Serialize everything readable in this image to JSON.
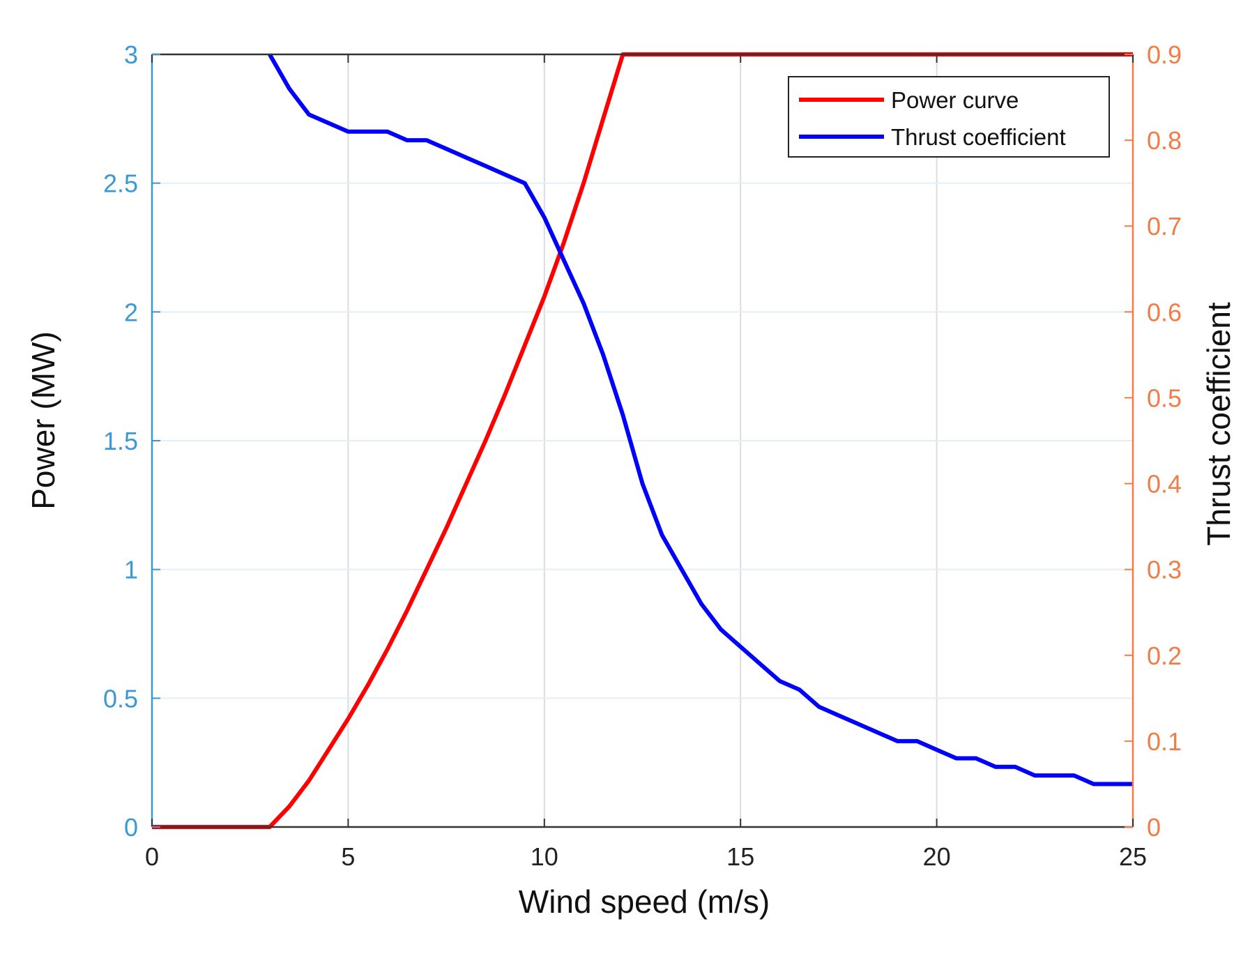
{
  "chart_data": {
    "type": "line",
    "xlabel": "Wind speed (m/s)",
    "ylabel_left": "Power (MW)",
    "ylabel_right": "Thrust coefficient",
    "xlim": [
      0,
      25
    ],
    "ylim_left": [
      0,
      3
    ],
    "ylim_right": [
      0,
      0.9
    ],
    "x_ticks": [
      "0",
      "5",
      "10",
      "15",
      "20",
      "25"
    ],
    "y_left_ticks": [
      "0",
      "0.5",
      "1",
      "1.5",
      "2",
      "2.5",
      "3"
    ],
    "y_right_ticks": [
      "0",
      "0.1",
      "0.2",
      "0.3",
      "0.4",
      "0.5",
      "0.6",
      "0.7",
      "0.8",
      "0.9"
    ],
    "grid": true,
    "legend_position": "top-right",
    "colors": {
      "power": "#ff0000",
      "thrust": "#0000ff",
      "left_axis": "#3b98d6",
      "right_axis": "#f27c45",
      "grid": "#e3eef7"
    },
    "series": [
      {
        "name": "Power curve",
        "axis": "left",
        "color": "#ff0000",
        "x": [
          0,
          3,
          3.5,
          4,
          4.5,
          5,
          5.5,
          6,
          6.5,
          7,
          7.5,
          8,
          8.5,
          9,
          9.5,
          10,
          10.5,
          11,
          11.5,
          12,
          25
        ],
        "y": [
          0,
          0,
          0.08,
          0.18,
          0.3,
          0.42,
          0.55,
          0.69,
          0.84,
          1.0,
          1.16,
          1.33,
          1.5,
          1.68,
          1.87,
          2.06,
          2.27,
          2.5,
          2.75,
          3.0,
          3.0
        ]
      },
      {
        "name": "Thrust coefficient",
        "axis": "right",
        "color": "#0000ff",
        "x": [
          3,
          3.5,
          4,
          4.5,
          5,
          5.5,
          6,
          6.5,
          7,
          7.5,
          8,
          8.5,
          9,
          9.5,
          10,
          10.5,
          11,
          11.5,
          12,
          12.5,
          13,
          13.5,
          14,
          14.5,
          15,
          15.5,
          16,
          16.5,
          17,
          17.5,
          18,
          18.5,
          19,
          19.5,
          20,
          20.5,
          21,
          21.5,
          22,
          22.5,
          23,
          23.5,
          24,
          24.5,
          25
        ],
        "y": [
          0.9,
          0.86,
          0.83,
          0.82,
          0.81,
          0.81,
          0.81,
          0.8,
          0.8,
          0.79,
          0.78,
          0.77,
          0.76,
          0.75,
          0.71,
          0.66,
          0.61,
          0.55,
          0.48,
          0.4,
          0.34,
          0.3,
          0.26,
          0.23,
          0.21,
          0.19,
          0.17,
          0.16,
          0.14,
          0.13,
          0.12,
          0.11,
          0.1,
          0.1,
          0.09,
          0.08,
          0.08,
          0.07,
          0.07,
          0.06,
          0.06,
          0.06,
          0.05,
          0.05,
          0.05
        ]
      }
    ]
  }
}
